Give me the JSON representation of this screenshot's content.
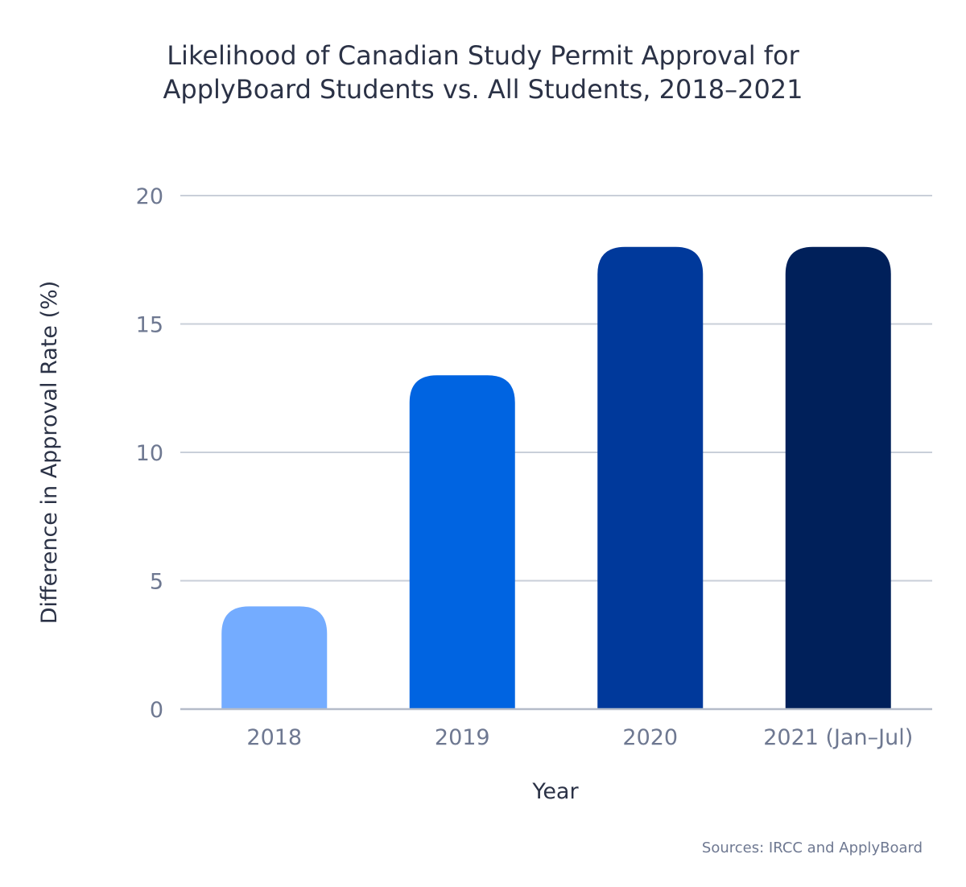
{
  "chart_data": {
    "type": "bar",
    "title_lines": [
      "Likelihood of Canadian Study Permit Approval for",
      "ApplyBoard Students vs. All Students, 2018–2021"
    ],
    "categories": [
      "2018",
      "2019",
      "2020",
      "2021 (Jan–Jul)"
    ],
    "values": [
      4,
      13,
      18,
      18
    ],
    "bar_colors": [
      "#74acff",
      "#0064e1",
      "#00399b",
      "#00205a"
    ],
    "xlabel": "Year",
    "ylabel": "Difference in Approval Rate (%)",
    "ylim": [
      0,
      20
    ],
    "yticks": [
      0,
      5,
      10,
      15,
      20
    ],
    "grid": true,
    "source": "Sources: IRCC and ApplyBoard"
  }
}
